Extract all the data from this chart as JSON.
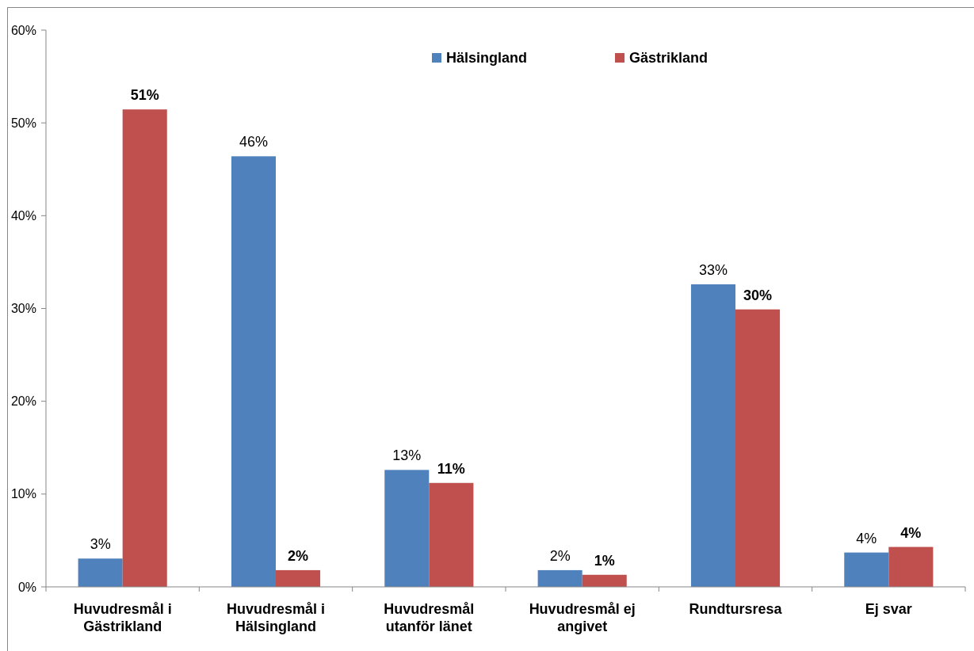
{
  "chart_data": {
    "type": "bar",
    "categories": [
      "Huvudresmål i Gästrikland",
      "Huvudresmål i Hälsingland",
      "Huvudresmål utanför länet",
      "Huvudresmål ej angivet",
      "Rundtursresa",
      "Ej svar"
    ],
    "series": [
      {
        "name": "Hälsingland",
        "color": "#4f81bd",
        "values": [
          3.05,
          46.4,
          12.6,
          1.8,
          32.6,
          3.7
        ],
        "value_labels": [
          "3%",
          "46%",
          "13%",
          "2%",
          "33%",
          "4%"
        ]
      },
      {
        "name": "Gästrikland",
        "color": "#c0504d",
        "values": [
          51.45,
          1.8,
          11.2,
          1.3,
          29.9,
          4.3
        ],
        "value_labels": [
          "51%",
          "2%",
          "11%",
          "1%",
          "30%",
          "4%"
        ]
      }
    ],
    "ylim": [
      0,
      60
    ],
    "yticks": [
      {
        "value": 0,
        "label": "0%"
      },
      {
        "value": 10,
        "label": "10%"
      },
      {
        "value": 20,
        "label": "20%"
      },
      {
        "value": 30,
        "label": "30%"
      },
      {
        "value": 40,
        "label": "40%"
      },
      {
        "value": 50,
        "label": "50%"
      },
      {
        "value": 60,
        "label": "60%"
      }
    ],
    "grid": false,
    "legend": "top"
  }
}
